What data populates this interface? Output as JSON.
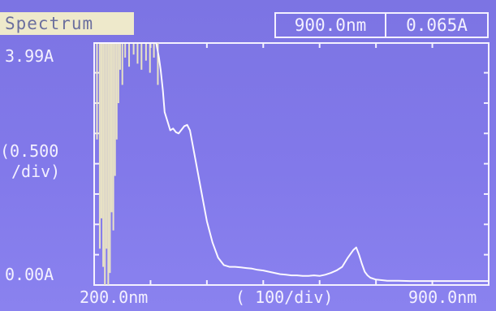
{
  "header": {
    "mode_label": "Spectrum",
    "wavelength_readout": "900.0nm",
    "absorbance_readout": "0.065A"
  },
  "axes": {
    "y_max_label": "3.99A",
    "y_scale_label_line1": "(0.500",
    "y_scale_label_line2": "/div)",
    "y_min_label": "0.00A",
    "x_min_label": "200.0nm",
    "x_scale_label": "( 100/div)",
    "x_max_label": "900.0nm"
  },
  "colors": {
    "background": "#7f77e6",
    "trace": "#fbf8ff",
    "tab_background": "#eee9cb"
  },
  "chart_data": {
    "type": "line",
    "title": "Spectrum",
    "xlabel": "",
    "ylabel": "",
    "xunit": "nm",
    "yunit": "A",
    "xlim": [
      200,
      900
    ],
    "ylim": [
      0.0,
      3.99
    ],
    "x_div": 100,
    "y_div": 0.5,
    "grid": false,
    "series": [
      {
        "x": [
          200,
          205,
          210,
          215,
          220,
          225,
          230,
          235,
          240,
          245,
          250,
          255,
          260,
          265,
          270,
          275,
          280,
          285,
          290,
          295,
          300,
          305,
          310,
          315,
          318,
          322,
          325,
          330,
          335,
          340,
          345,
          350,
          355,
          360,
          365,
          370,
          380,
          390,
          400,
          410,
          420,
          430,
          440,
          450,
          460,
          470,
          480,
          490,
          500,
          510,
          520,
          530,
          540,
          550,
          560,
          570,
          580,
          590,
          600,
          610,
          620,
          630,
          640,
          650,
          660,
          665,
          670,
          675,
          680,
          685,
          690,
          700,
          710,
          720,
          740,
          760,
          780,
          800,
          820,
          840,
          860,
          880,
          900
        ],
        "values": [
          3.99,
          3.99,
          3.99,
          3.99,
          3.99,
          3.99,
          3.99,
          3.99,
          3.99,
          3.99,
          3.99,
          3.99,
          3.99,
          3.99,
          3.99,
          3.99,
          3.99,
          3.99,
          3.99,
          3.99,
          3.99,
          3.99,
          3.99,
          3.75,
          3.55,
          3.2,
          2.85,
          2.7,
          2.55,
          2.58,
          2.52,
          2.5,
          2.56,
          2.62,
          2.64,
          2.55,
          2.05,
          1.55,
          1.05,
          0.7,
          0.45,
          0.33,
          0.3,
          0.3,
          0.29,
          0.28,
          0.27,
          0.25,
          0.24,
          0.22,
          0.2,
          0.18,
          0.17,
          0.16,
          0.16,
          0.15,
          0.15,
          0.16,
          0.15,
          0.17,
          0.2,
          0.24,
          0.3,
          0.45,
          0.58,
          0.62,
          0.5,
          0.35,
          0.22,
          0.16,
          0.12,
          0.09,
          0.08,
          0.07,
          0.07,
          0.066,
          0.065,
          0.065,
          0.065,
          0.065,
          0.065,
          0.065,
          0.065
        ]
      }
    ],
    "noise_region": {
      "x": [
        205,
        210,
        213,
        216,
        219,
        222,
        225,
        228,
        231,
        234,
        237,
        240,
        243,
        246,
        250,
        255,
        262,
        270,
        277,
        284,
        292,
        299,
        306,
        313
      ],
      "low": [
        2.4,
        0.6,
        1.1,
        0.3,
        0.0,
        0.6,
        0.0,
        0.2,
        1.2,
        0.9,
        1.8,
        2.4,
        3.0,
        3.55,
        3.3,
        3.75,
        3.6,
        3.8,
        3.65,
        3.55,
        3.7,
        3.5,
        3.75,
        3.3
      ]
    }
  }
}
